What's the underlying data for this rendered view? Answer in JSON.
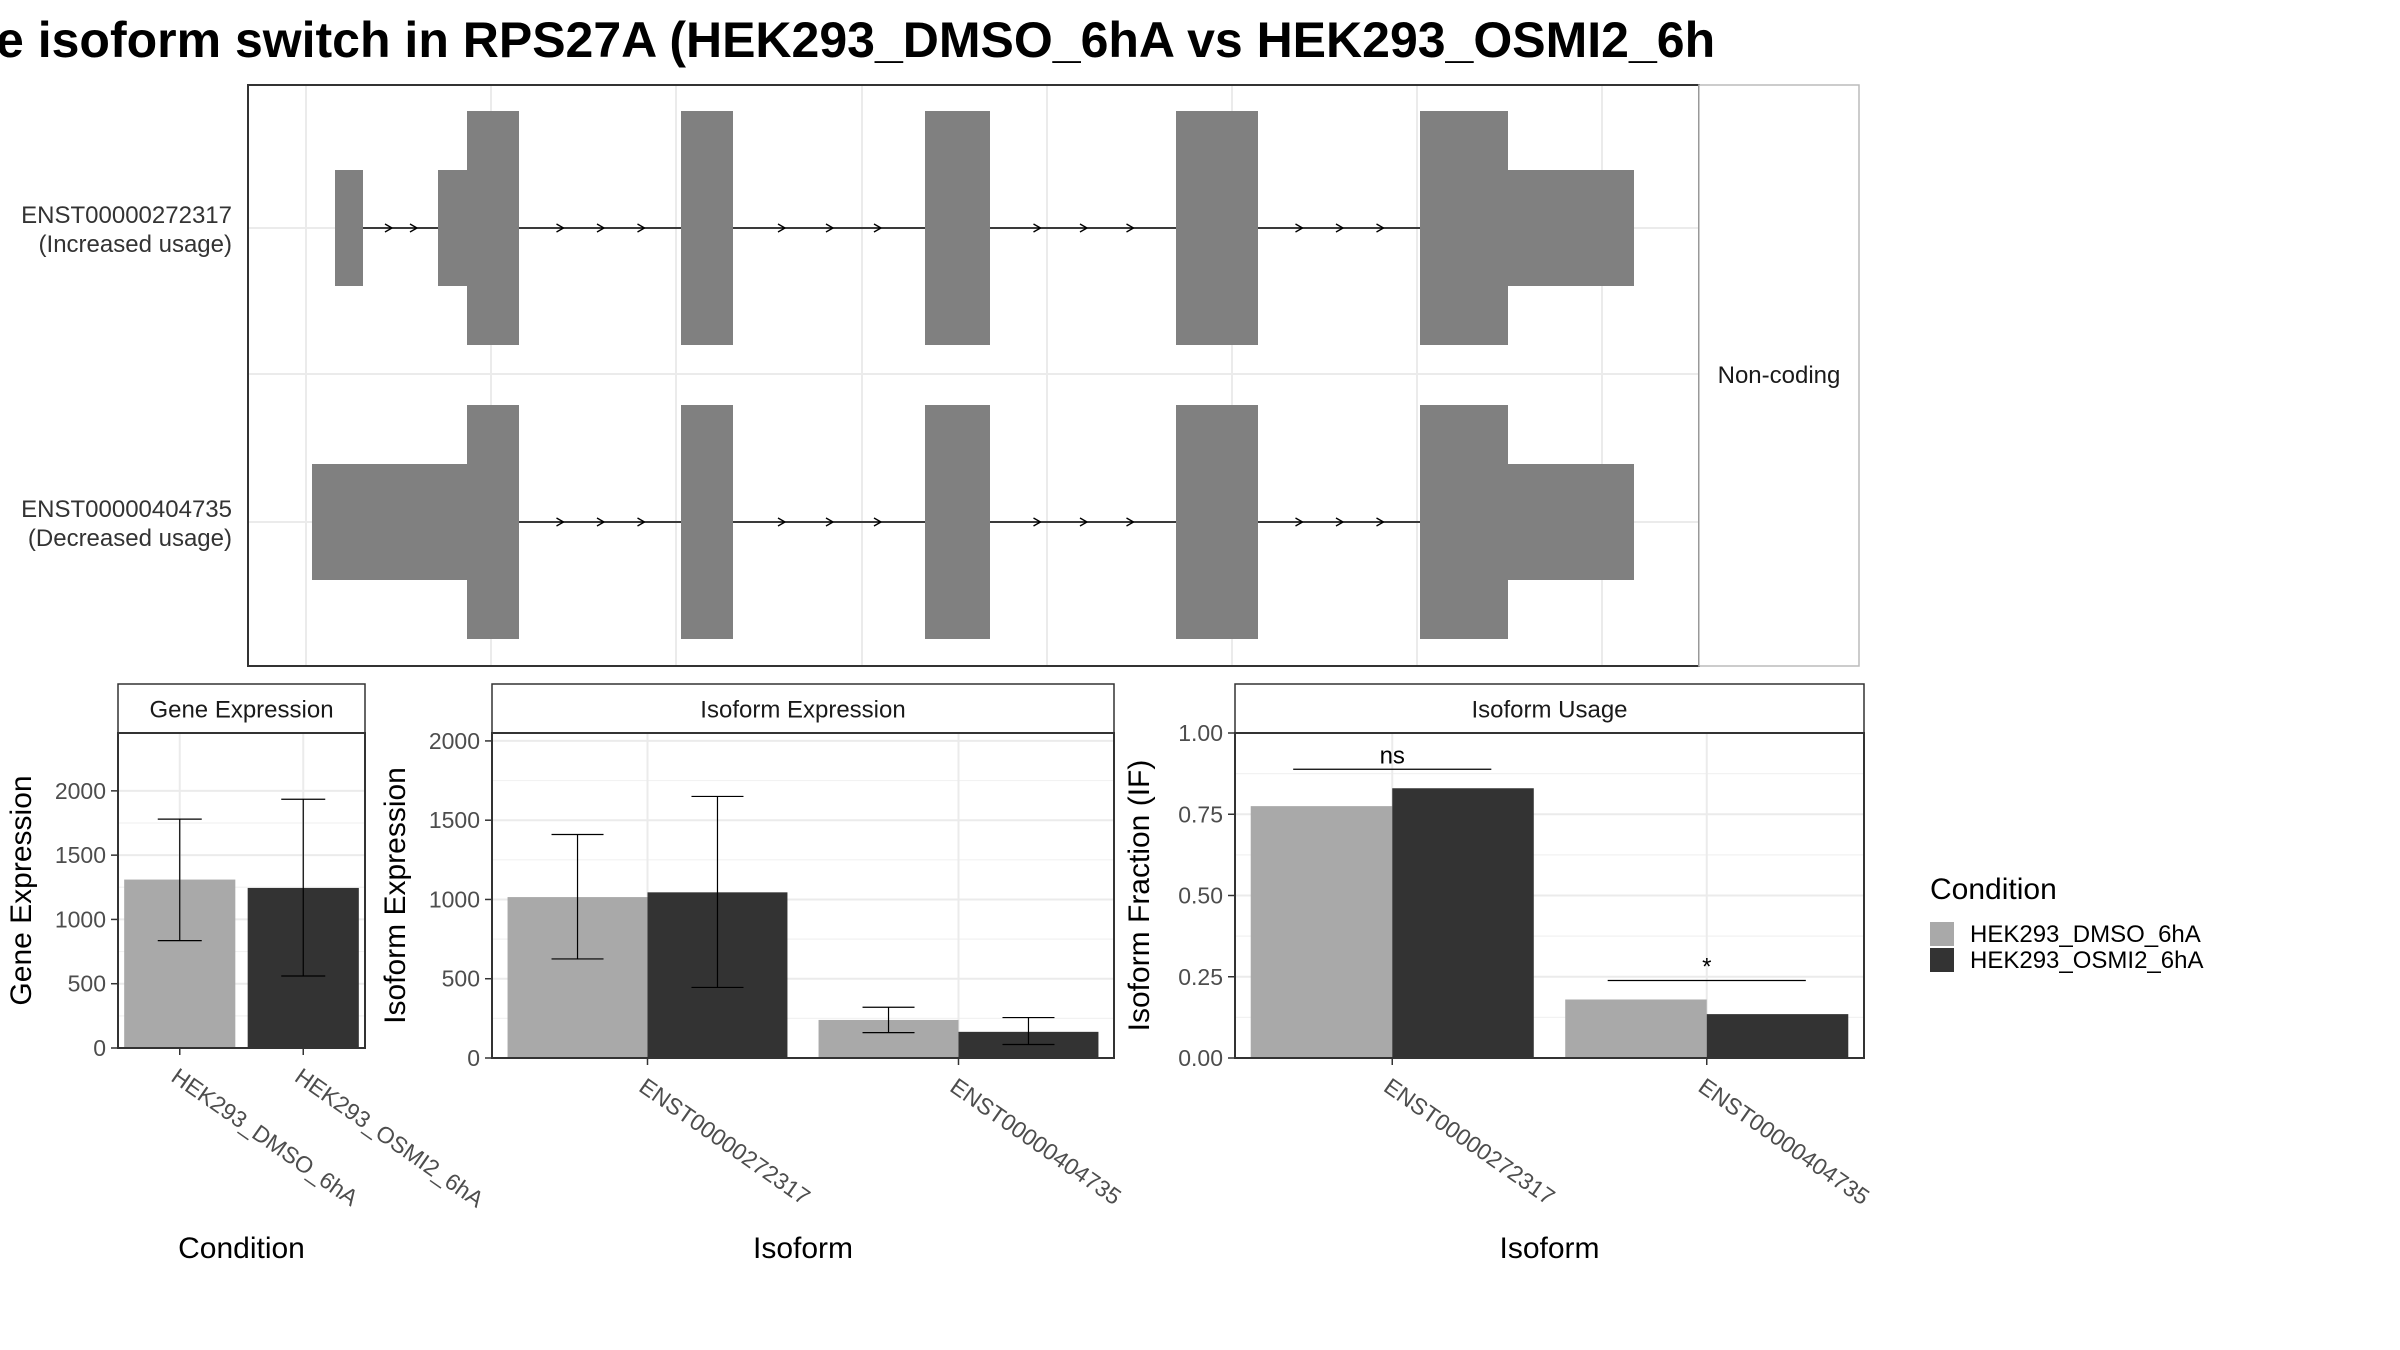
{
  "title": "e isoform switch in RPS27A (HEK293_DMSO_6hA vs HEK293_OSMI2_6h",
  "colors": {
    "dmso": "#a9a9a9",
    "osmi": "#333333",
    "exon": "#808080",
    "grid": "#ebebeb",
    "border": "#333333"
  },
  "chart_data": [
    {
      "type": "gene-structure",
      "facet_label": "Non-coding",
      "isoforms": [
        {
          "id": "ENST00000272317",
          "usage_label": "(Increased usage)"
        },
        {
          "id": "ENST00000404735",
          "usage_label": "(Decreased usage)"
        }
      ]
    },
    {
      "type": "bar",
      "title": "Gene Expression",
      "xlabel": "Condition",
      "ylabel": "Gene Expression",
      "ylim": [
        0,
        2450
      ],
      "yticks": [
        "0",
        "500",
        "1000",
        "1500",
        "2000"
      ],
      "categories": [
        "HEK293_DMSO_6hA",
        "HEK293_OSMI2_6hA"
      ],
      "values": [
        1310,
        1245
      ],
      "error_low": [
        835,
        560
      ],
      "error_high": [
        1780,
        1935
      ]
    },
    {
      "type": "bar",
      "title": "Isoform Expression",
      "xlabel": "Isoform",
      "ylabel": "Isoform Expression",
      "ylim": [
        0,
        2050
      ],
      "yticks": [
        "0",
        "500",
        "1000",
        "1500",
        "2000"
      ],
      "categories": [
        "ENST00000272317",
        "ENST00000404735"
      ],
      "series": [
        {
          "name": "HEK293_DMSO_6hA",
          "values": [
            1015,
            240
          ],
          "error_low": [
            625,
            160
          ],
          "error_high": [
            1410,
            320
          ]
        },
        {
          "name": "HEK293_OSMI2_6hA",
          "values": [
            1045,
            165
          ],
          "error_low": [
            445,
            85
          ],
          "error_high": [
            1650,
            255
          ]
        }
      ]
    },
    {
      "type": "bar",
      "title": "Isoform Usage",
      "xlabel": "Isoform",
      "ylabel": "Isoform Fraction (IF)",
      "ylim": [
        0,
        1.0
      ],
      "yticks": [
        "0.00",
        "0.25",
        "0.50",
        "0.75",
        "1.00"
      ],
      "categories": [
        "ENST00000272317",
        "ENST00000404735"
      ],
      "series": [
        {
          "name": "HEK293_DMSO_6hA",
          "values": [
            0.775,
            0.18
          ]
        },
        {
          "name": "HEK293_OSMI2_6hA",
          "values": [
            0.83,
            0.135
          ]
        }
      ],
      "significance": [
        "ns",
        "*"
      ]
    }
  ],
  "legend": {
    "title": "Condition",
    "entries": [
      "HEK293_DMSO_6hA",
      "HEK293_OSMI2_6hA"
    ]
  }
}
